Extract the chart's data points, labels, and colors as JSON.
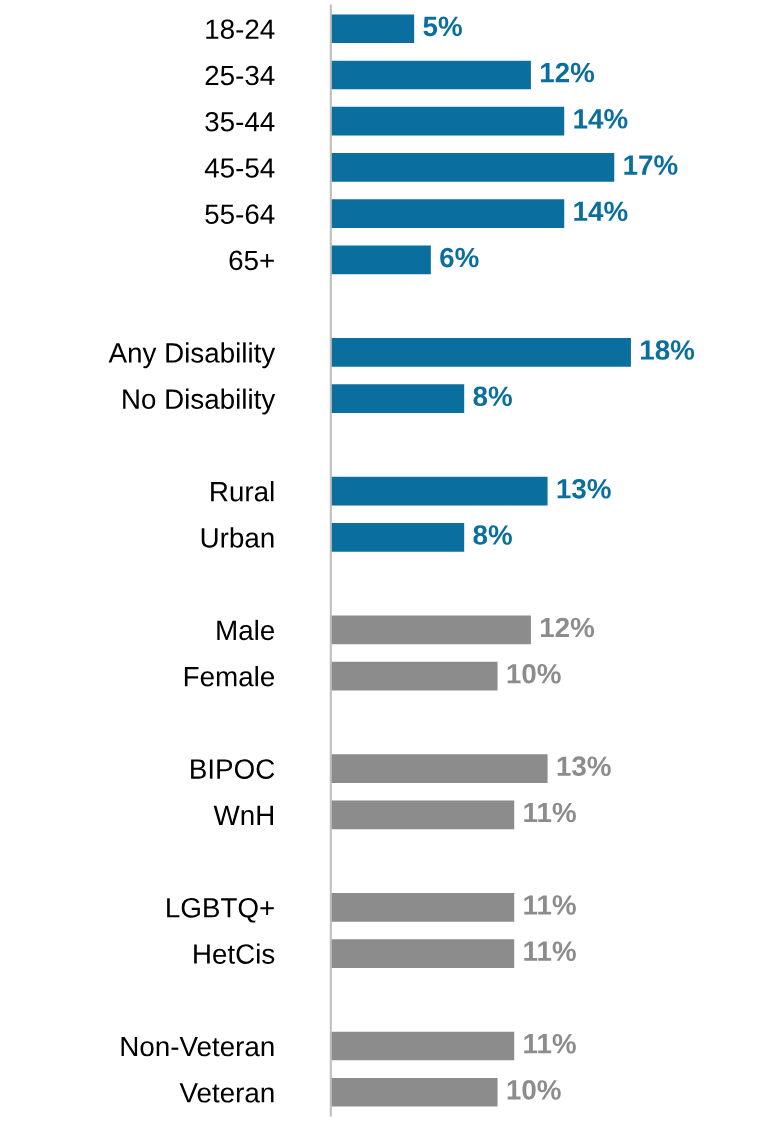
{
  "chart_data": {
    "type": "bar",
    "orientation": "horizontal",
    "categories": [
      "18-24",
      "25-34",
      "35-44",
      "45-54",
      "55-64",
      "65+",
      null,
      "Any Disability",
      "No Disability",
      null,
      "Rural",
      "Urban",
      null,
      "Male",
      "Female",
      null,
      "BIPOC",
      "WnH",
      null,
      "LGBTQ+",
      "HetCis",
      null,
      "Non-Veteran",
      "Veteran"
    ],
    "values": [
      5,
      12,
      14,
      17,
      14,
      6,
      null,
      18,
      8,
      null,
      13,
      8,
      null,
      12,
      10,
      null,
      13,
      11,
      null,
      11,
      11,
      null,
      11,
      10
    ],
    "value_labels": [
      "5%",
      "12%",
      "14%",
      "17%",
      "14%",
      "6%",
      null,
      "18%",
      "8%",
      null,
      "13%",
      "8%",
      null,
      "12%",
      "10%",
      null,
      "13%",
      "11%",
      null,
      "11%",
      "11%",
      null,
      "11%",
      "10%"
    ],
    "colors": [
      "#0a6f9e",
      "#0a6f9e",
      "#0a6f9e",
      "#0a6f9e",
      "#0a6f9e",
      "#0a6f9e",
      null,
      "#0a6f9e",
      "#0a6f9e",
      null,
      "#0a6f9e",
      "#0a6f9e",
      null,
      "#8c8c8c",
      "#8c8c8c",
      null,
      "#8c8c8c",
      "#8c8c8c",
      null,
      "#8c8c8c",
      "#8c8c8c",
      null,
      "#8c8c8c",
      "#8c8c8c"
    ],
    "grid": false,
    "legend": false,
    "tick_labels": "y"
  }
}
